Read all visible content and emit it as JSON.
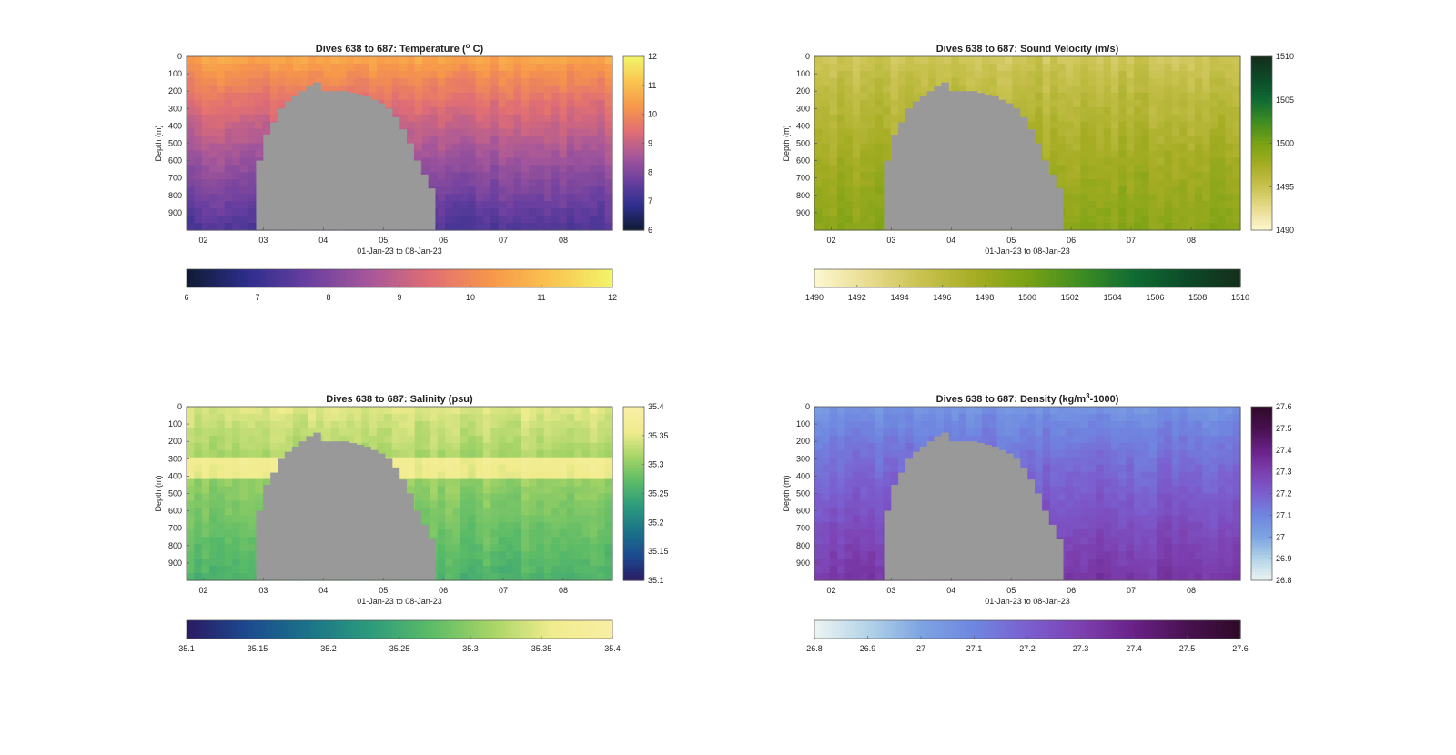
{
  "chart_data": [
    {
      "type": "heatmap",
      "title": "Dives 638 to 687: Temperature (",
      "title_sup": "o",
      "title_tail": " C)",
      "xlabel": "01-Jan-23 to 08-Jan-23",
      "ylabel": "Depth (m)",
      "xlim": [
        "01-Jan-23 17:00",
        "08-Jan-23 20:00"
      ],
      "ylim": [
        0,
        1000
      ],
      "x_ticks": [
        "02",
        "03",
        "04",
        "05",
        "06",
        "07",
        "08"
      ],
      "y_ticks": [
        "0",
        "100",
        "200",
        "300",
        "400",
        "500",
        "600",
        "700",
        "800",
        "900"
      ],
      "colormap": [
        "#0f1b33",
        "#2d2e8c",
        "#6a3fa0",
        "#a6579a",
        "#e06e74",
        "#f7974a",
        "#f9c450",
        "#f2f56a"
      ],
      "clim": [
        6,
        12
      ],
      "colorbar_ticks": [
        "6",
        "7",
        "8",
        "9",
        "10",
        "11",
        "12"
      ],
      "surface_value": 10.7,
      "deep_value": 7.3,
      "data_gap_color": "#999999",
      "profile_depths": [
        0,
        200,
        400,
        600,
        800,
        1000
      ]
    },
    {
      "type": "heatmap",
      "title": "Dives 638 to 687: Sound Velocity (m/s)",
      "xlabel": "01-Jan-23 to 08-Jan-23",
      "ylabel": "Depth (m)",
      "xlim": [
        "01-Jan-23 17:00",
        "08-Jan-23 20:00"
      ],
      "ylim": [
        0,
        1000
      ],
      "x_ticks": [
        "02",
        "03",
        "04",
        "05",
        "06",
        "07",
        "08"
      ],
      "y_ticks": [
        "0",
        "100",
        "200",
        "300",
        "400",
        "500",
        "600",
        "700",
        "800",
        "900"
      ],
      "colormap": [
        "#fdf8d2",
        "#e8dc90",
        "#c9c250",
        "#a6ad24",
        "#7aa214",
        "#3f8d22",
        "#0f6c33",
        "#0d4a28",
        "#152e1c"
      ],
      "clim": [
        1490,
        1510
      ],
      "colorbar_ticks": [
        "1490",
        "1495",
        "1500",
        "1505",
        "1510"
      ],
      "horizontal_colorbar_ticks": [
        "1490",
        "1492",
        "1494",
        "1496",
        "1498",
        "1500",
        "1502",
        "1504",
        "1506",
        "1508",
        "1510"
      ],
      "surface_value": 1494.5,
      "deep_value": 1499.2,
      "data_gap_color": "#999999"
    },
    {
      "type": "heatmap",
      "title": "Dives 638 to 687: Salinity (psu)",
      "xlabel": "01-Jan-23 to 08-Jan-23",
      "ylabel": "Depth (m)",
      "xlim": [
        "01-Jan-23 17:00",
        "08-Jan-23 20:00"
      ],
      "ylim": [
        0,
        1000
      ],
      "x_ticks": [
        "02",
        "03",
        "04",
        "05",
        "06",
        "07",
        "08"
      ],
      "y_ticks": [
        "0",
        "100",
        "200",
        "300",
        "400",
        "500",
        "600",
        "700",
        "800",
        "900"
      ],
      "colormap": [
        "#2a1a63",
        "#1c4a8f",
        "#1b7389",
        "#2c9a7d",
        "#5bbb67",
        "#a6d466",
        "#f0ec8e",
        "#f9eea5"
      ],
      "clim": [
        35.1,
        35.4
      ],
      "colorbar_ticks": [
        "35.1",
        "35.15",
        "35.2",
        "35.25",
        "35.3",
        "35.35",
        "35.4"
      ],
      "surface_value": 35.35,
      "deep_value": 35.26,
      "data_gap_color": "#999999"
    },
    {
      "type": "heatmap",
      "title": "Dives 638 to 687: Density (kg/m",
      "title_sup": "3",
      "title_tail": "-1000)",
      "xlabel": "01-Jan-23 to 08-Jan-23",
      "ylabel": "Depth (m)",
      "xlim": [
        "01-Jan-23 17:00",
        "08-Jan-23 20:00"
      ],
      "ylim": [
        0,
        1000
      ],
      "x_ticks": [
        "02",
        "03",
        "04",
        "05",
        "06",
        "07",
        "08"
      ],
      "y_ticks": [
        "0",
        "100",
        "200",
        "300",
        "400",
        "500",
        "600",
        "700",
        "800",
        "900"
      ],
      "colormap": [
        "#eef4f2",
        "#b4d4e8",
        "#7da4e2",
        "#6f86e0",
        "#7b5fd0",
        "#7d40b0",
        "#6a2188",
        "#48114f",
        "#2e0a28"
      ],
      "clim": [
        26.8,
        27.6
      ],
      "colorbar_ticks": [
        "26.8",
        "26.9",
        "27",
        "27.1",
        "27.2",
        "27.3",
        "27.4",
        "27.5",
        "27.6"
      ],
      "surface_value": 27.05,
      "deep_value": 27.33,
      "data_gap_color": "#999999"
    }
  ]
}
